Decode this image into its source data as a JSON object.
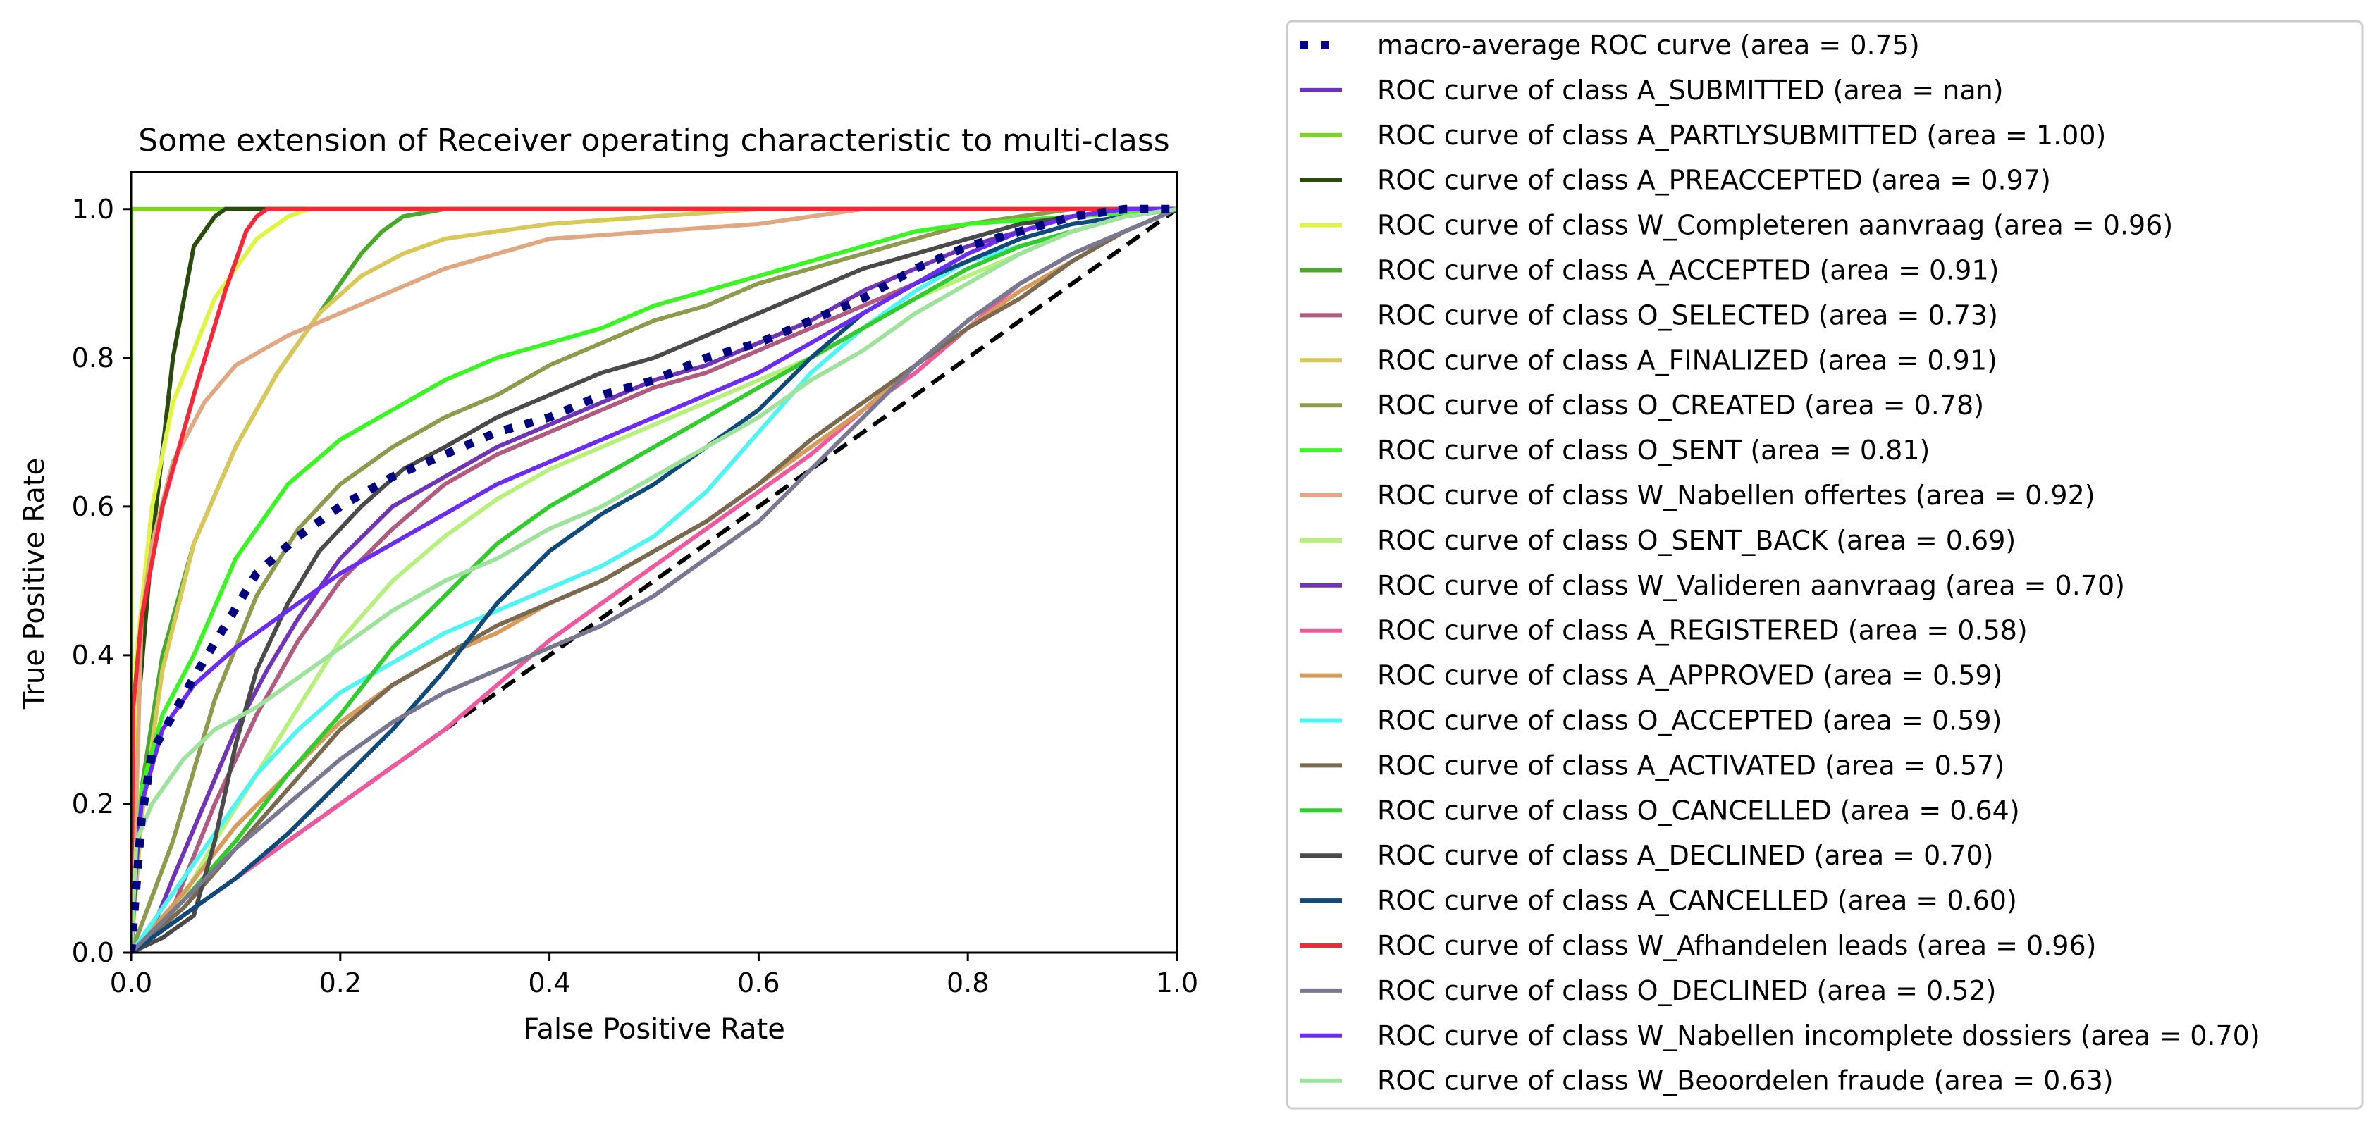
{
  "chart_data": {
    "type": "line",
    "title": "Some extension of Receiver operating characteristic to multi-class",
    "xlabel": "False Positive Rate",
    "ylabel": "True Positive Rate",
    "xlim": [
      0.0,
      1.0
    ],
    "ylim": [
      0.0,
      1.05
    ],
    "xticks": [
      "0.0",
      "0.2",
      "0.4",
      "0.6",
      "0.8",
      "1.0"
    ],
    "yticks": [
      "0.0",
      "0.2",
      "0.4",
      "0.6",
      "0.8",
      "1.0"
    ],
    "grid": false,
    "legend_position": "outside-right",
    "diagonal": {
      "x": [
        0.0,
        1.0
      ],
      "y": [
        0.0,
        1.0
      ],
      "color": "#000000",
      "style": "dashed"
    },
    "series": [
      {
        "name": "macro-average ROC curve (area = 0.75)",
        "color": "#000080",
        "style": "dotted",
        "x": [
          0.0,
          0.01,
          0.02,
          0.04,
          0.06,
          0.09,
          0.12,
          0.16,
          0.2,
          0.25,
          0.3,
          0.35,
          0.4,
          0.45,
          0.5,
          0.55,
          0.6,
          0.65,
          0.7,
          0.75,
          0.8,
          0.85,
          0.9,
          0.95,
          1.0
        ],
        "y": [
          0.0,
          0.18,
          0.27,
          0.32,
          0.37,
          0.44,
          0.51,
          0.56,
          0.6,
          0.64,
          0.67,
          0.7,
          0.72,
          0.75,
          0.77,
          0.8,
          0.82,
          0.85,
          0.88,
          0.92,
          0.95,
          0.97,
          0.99,
          1.0,
          1.0
        ]
      },
      {
        "name": "ROC curve of class A_SUBMITTED (area = nan)",
        "color": "#6a2fc8",
        "style": "solid",
        "x": [],
        "y": []
      },
      {
        "name": "ROC curve of class A_PARTLYSUBMITTED (area = 1.00)",
        "color": "#7fd12c",
        "style": "solid",
        "x": [
          0.0,
          0.0,
          1.0
        ],
        "y": [
          0.0,
          1.0,
          1.0
        ]
      },
      {
        "name": "ROC curve of class A_PREACCEPTED (area = 0.97)",
        "color": "#2b4a0e",
        "style": "solid",
        "x": [
          0.0,
          0.005,
          0.02,
          0.04,
          0.06,
          0.08,
          0.09,
          1.0
        ],
        "y": [
          0.0,
          0.3,
          0.55,
          0.8,
          0.95,
          0.99,
          1.0,
          1.0
        ]
      },
      {
        "name": "ROC curve of class W_Completeren aanvraag (area = 0.96)",
        "color": "#dff542",
        "style": "solid",
        "x": [
          0.0,
          0.005,
          0.02,
          0.04,
          0.08,
          0.12,
          0.15,
          0.17,
          1.0
        ],
        "y": [
          0.0,
          0.4,
          0.6,
          0.74,
          0.88,
          0.96,
          0.99,
          1.0,
          1.0
        ]
      },
      {
        "name": "ROC curve of class A_ACCEPTED (area = 0.91)",
        "color": "#4aa82a",
        "style": "solid",
        "x": [
          0.0,
          0.01,
          0.03,
          0.06,
          0.1,
          0.14,
          0.18,
          0.22,
          0.24,
          0.26,
          0.3,
          0.35,
          1.0
        ],
        "y": [
          0.0,
          0.22,
          0.4,
          0.55,
          0.68,
          0.78,
          0.86,
          0.94,
          0.97,
          0.99,
          1.0,
          1.0,
          1.0
        ]
      },
      {
        "name": "ROC curve of class O_SELECTED (area = 0.73)",
        "color": "#b05b7f",
        "style": "solid",
        "x": [
          0.0,
          0.04,
          0.08,
          0.12,
          0.16,
          0.2,
          0.25,
          0.3,
          0.35,
          0.4,
          0.45,
          0.5,
          0.55,
          0.6,
          0.65,
          0.7,
          0.75,
          0.8,
          0.85,
          0.9,
          0.95,
          1.0
        ],
        "y": [
          0.0,
          0.06,
          0.2,
          0.32,
          0.42,
          0.5,
          0.57,
          0.63,
          0.67,
          0.7,
          0.73,
          0.76,
          0.78,
          0.81,
          0.84,
          0.87,
          0.9,
          0.93,
          0.95,
          0.97,
          0.99,
          1.0
        ]
      },
      {
        "name": "ROC curve of class A_FINALIZED (area = 0.91)",
        "color": "#d8c85a",
        "style": "solid",
        "x": [
          0.0,
          0.01,
          0.03,
          0.06,
          0.1,
          0.14,
          0.18,
          0.22,
          0.26,
          0.3,
          0.35,
          0.4,
          0.5,
          0.6,
          0.7,
          0.8,
          1.0
        ],
        "y": [
          0.0,
          0.18,
          0.38,
          0.55,
          0.68,
          0.78,
          0.86,
          0.91,
          0.94,
          0.96,
          0.97,
          0.98,
          0.99,
          1.0,
          1.0,
          1.0,
          1.0
        ]
      },
      {
        "name": "ROC curve of class O_CREATED (area = 0.78)",
        "color": "#8e9a4e",
        "style": "solid",
        "x": [
          0.0,
          0.04,
          0.08,
          0.12,
          0.16,
          0.2,
          0.25,
          0.3,
          0.35,
          0.4,
          0.45,
          0.5,
          0.55,
          0.6,
          0.65,
          0.7,
          0.75,
          0.8,
          0.85,
          0.9,
          1.0
        ],
        "y": [
          0.0,
          0.15,
          0.34,
          0.48,
          0.57,
          0.63,
          0.68,
          0.72,
          0.75,
          0.79,
          0.82,
          0.85,
          0.87,
          0.9,
          0.92,
          0.94,
          0.96,
          0.98,
          0.99,
          1.0,
          1.0
        ]
      },
      {
        "name": "ROC curve of class O_SENT (area = 0.81)",
        "color": "#3bf524",
        "style": "solid",
        "x": [
          0.0,
          0.01,
          0.03,
          0.06,
          0.1,
          0.15,
          0.2,
          0.25,
          0.3,
          0.35,
          0.4,
          0.45,
          0.5,
          0.55,
          0.6,
          0.65,
          0.7,
          0.75,
          0.8,
          0.9,
          1.0
        ],
        "y": [
          0.0,
          0.22,
          0.32,
          0.4,
          0.53,
          0.63,
          0.69,
          0.73,
          0.77,
          0.8,
          0.82,
          0.84,
          0.87,
          0.89,
          0.91,
          0.93,
          0.95,
          0.97,
          0.98,
          0.99,
          1.0
        ]
      },
      {
        "name": "ROC curve of class W_Nabellen offertes (area = 0.92)",
        "color": "#e0a882",
        "style": "solid",
        "x": [
          0.0,
          0.005,
          0.01,
          0.02,
          0.04,
          0.07,
          0.1,
          0.15,
          0.2,
          0.25,
          0.3,
          0.35,
          0.4,
          0.5,
          0.6,
          0.65,
          0.7,
          0.8,
          1.0
        ],
        "y": [
          0.0,
          0.2,
          0.45,
          0.55,
          0.66,
          0.74,
          0.79,
          0.83,
          0.86,
          0.89,
          0.92,
          0.94,
          0.96,
          0.97,
          0.98,
          0.99,
          1.0,
          1.0,
          1.0
        ]
      },
      {
        "name": "ROC curve of class O_SENT_BACK (area = 0.69)",
        "color": "#b7f07c",
        "style": "solid",
        "x": [
          0.0,
          0.04,
          0.08,
          0.12,
          0.16,
          0.2,
          0.25,
          0.3,
          0.35,
          0.4,
          0.45,
          0.5,
          0.55,
          0.6,
          0.65,
          0.7,
          0.75,
          0.8,
          0.85,
          0.9,
          0.95,
          1.0
        ],
        "y": [
          0.0,
          0.05,
          0.15,
          0.24,
          0.33,
          0.42,
          0.5,
          0.56,
          0.61,
          0.65,
          0.68,
          0.71,
          0.74,
          0.77,
          0.8,
          0.84,
          0.88,
          0.91,
          0.94,
          0.97,
          0.99,
          1.0
        ]
      },
      {
        "name": "ROC curve of class W_Valideren aanvraag (area = 0.70)",
        "color": "#7035b6",
        "style": "solid",
        "x": [
          0.0,
          0.02,
          0.04,
          0.07,
          0.1,
          0.13,
          0.16,
          0.2,
          0.25,
          0.3,
          0.35,
          0.4,
          0.45,
          0.5,
          0.55,
          0.6,
          0.65,
          0.7,
          0.75,
          0.8,
          0.85,
          0.9,
          0.95,
          1.0
        ],
        "y": [
          0.0,
          0.03,
          0.1,
          0.2,
          0.3,
          0.38,
          0.45,
          0.53,
          0.6,
          0.64,
          0.68,
          0.71,
          0.74,
          0.77,
          0.79,
          0.82,
          0.85,
          0.89,
          0.92,
          0.95,
          0.97,
          0.99,
          1.0,
          1.0
        ]
      },
      {
        "name": "ROC curve of class A_REGISTERED (area = 0.58)",
        "color": "#ee5a9e",
        "style": "solid",
        "x": [
          0.0,
          0.05,
          0.1,
          0.15,
          0.2,
          0.25,
          0.3,
          0.35,
          0.4,
          0.45,
          0.5,
          0.55,
          0.6,
          0.65,
          0.7,
          0.75,
          0.8,
          0.85,
          0.9,
          0.95,
          1.0
        ],
        "y": [
          0.0,
          0.05,
          0.1,
          0.15,
          0.2,
          0.25,
          0.3,
          0.36,
          0.42,
          0.47,
          0.52,
          0.57,
          0.62,
          0.67,
          0.73,
          0.78,
          0.84,
          0.9,
          0.94,
          0.97,
          1.0
        ]
      },
      {
        "name": "ROC curve of class A_APPROVED (area = 0.59)",
        "color": "#d89b5e",
        "style": "solid",
        "x": [
          0.0,
          0.05,
          0.1,
          0.15,
          0.2,
          0.25,
          0.3,
          0.35,
          0.4,
          0.45,
          0.5,
          0.55,
          0.6,
          0.65,
          0.7,
          0.75,
          0.8,
          0.85,
          0.9,
          0.95,
          1.0
        ],
        "y": [
          0.0,
          0.08,
          0.17,
          0.24,
          0.31,
          0.36,
          0.4,
          0.43,
          0.47,
          0.5,
          0.54,
          0.58,
          0.63,
          0.68,
          0.73,
          0.79,
          0.84,
          0.89,
          0.93,
          0.97,
          1.0
        ]
      },
      {
        "name": "ROC curve of class O_ACCEPTED (area = 0.59)",
        "color": "#4ff5f0",
        "style": "solid",
        "x": [
          0.0,
          0.04,
          0.08,
          0.12,
          0.16,
          0.2,
          0.25,
          0.3,
          0.35,
          0.4,
          0.45,
          0.5,
          0.55,
          0.6,
          0.65,
          0.7,
          0.75,
          0.8,
          0.85,
          0.9,
          0.95,
          1.0
        ],
        "y": [
          0.0,
          0.08,
          0.16,
          0.24,
          0.3,
          0.35,
          0.39,
          0.43,
          0.46,
          0.49,
          0.52,
          0.56,
          0.62,
          0.7,
          0.78,
          0.84,
          0.89,
          0.93,
          0.95,
          0.97,
          0.99,
          1.0
        ]
      },
      {
        "name": "ROC curve of class A_ACTIVATED (area = 0.57)",
        "color": "#7a6a50",
        "style": "solid",
        "x": [
          0.0,
          0.05,
          0.1,
          0.15,
          0.2,
          0.25,
          0.3,
          0.35,
          0.4,
          0.45,
          0.5,
          0.55,
          0.6,
          0.65,
          0.7,
          0.75,
          0.8,
          0.85,
          0.9,
          0.95,
          1.0
        ],
        "y": [
          0.0,
          0.06,
          0.14,
          0.22,
          0.3,
          0.36,
          0.4,
          0.44,
          0.47,
          0.5,
          0.54,
          0.58,
          0.63,
          0.69,
          0.74,
          0.79,
          0.84,
          0.88,
          0.93,
          0.97,
          1.0
        ]
      },
      {
        "name": "ROC curve of class O_CANCELLED (area = 0.64)",
        "color": "#33cc2e",
        "style": "solid",
        "x": [
          0.0,
          0.05,
          0.1,
          0.15,
          0.2,
          0.25,
          0.3,
          0.35,
          0.4,
          0.45,
          0.5,
          0.55,
          0.6,
          0.65,
          0.7,
          0.75,
          0.8,
          0.85,
          0.9,
          0.95,
          1.0
        ],
        "y": [
          0.0,
          0.07,
          0.15,
          0.24,
          0.32,
          0.41,
          0.48,
          0.55,
          0.6,
          0.64,
          0.68,
          0.72,
          0.76,
          0.8,
          0.84,
          0.88,
          0.92,
          0.95,
          0.97,
          0.99,
          1.0
        ]
      },
      {
        "name": "ROC curve of class A_DECLINED (area = 0.70)",
        "color": "#4a4a4a",
        "style": "solid",
        "x": [
          0.0,
          0.03,
          0.06,
          0.08,
          0.1,
          0.12,
          0.15,
          0.18,
          0.22,
          0.26,
          0.3,
          0.35,
          0.4,
          0.45,
          0.5,
          0.55,
          0.6,
          0.65,
          0.7,
          0.75,
          0.8,
          0.85,
          0.9,
          0.95,
          1.0
        ],
        "y": [
          0.0,
          0.02,
          0.05,
          0.15,
          0.28,
          0.38,
          0.47,
          0.54,
          0.6,
          0.65,
          0.68,
          0.72,
          0.75,
          0.78,
          0.8,
          0.83,
          0.86,
          0.89,
          0.92,
          0.94,
          0.96,
          0.98,
          0.99,
          1.0,
          1.0
        ]
      },
      {
        "name": "ROC curve of class A_CANCELLED (area = 0.60)",
        "color": "#0f4a7a",
        "style": "solid",
        "x": [
          0.0,
          0.05,
          0.1,
          0.15,
          0.2,
          0.25,
          0.3,
          0.35,
          0.4,
          0.45,
          0.5,
          0.55,
          0.6,
          0.65,
          0.7,
          0.75,
          0.8,
          0.85,
          0.9,
          0.95,
          1.0
        ],
        "y": [
          0.0,
          0.05,
          0.1,
          0.16,
          0.23,
          0.3,
          0.38,
          0.47,
          0.54,
          0.59,
          0.63,
          0.68,
          0.73,
          0.8,
          0.86,
          0.9,
          0.93,
          0.96,
          0.98,
          0.99,
          1.0
        ]
      },
      {
        "name": "ROC curve of class W_Afhandelen leads (area = 0.96)",
        "color": "#f5283a",
        "style": "solid",
        "x": [
          0.0,
          0.002,
          0.01,
          0.03,
          0.06,
          0.09,
          0.11,
          0.12,
          0.13,
          1.0
        ],
        "y": [
          0.0,
          0.33,
          0.45,
          0.6,
          0.75,
          0.89,
          0.97,
          0.99,
          1.0,
          1.0
        ]
      },
      {
        "name": "ROC curve of class O_DECLINED (area = 0.52)",
        "color": "#7a7890",
        "style": "solid",
        "x": [
          0.0,
          0.05,
          0.1,
          0.15,
          0.2,
          0.25,
          0.3,
          0.35,
          0.4,
          0.45,
          0.5,
          0.55,
          0.6,
          0.65,
          0.7,
          0.75,
          0.8,
          0.85,
          0.9,
          0.95,
          1.0
        ],
        "y": [
          0.0,
          0.07,
          0.14,
          0.2,
          0.26,
          0.31,
          0.35,
          0.38,
          0.41,
          0.44,
          0.48,
          0.53,
          0.58,
          0.65,
          0.72,
          0.79,
          0.85,
          0.9,
          0.94,
          0.97,
          1.0
        ]
      },
      {
        "name": "ROC curve of class W_Nabellen incomplete dossiers (area = 0.70)",
        "color": "#6b2cf5",
        "style": "solid",
        "x": [
          0.0,
          0.005,
          0.01,
          0.03,
          0.06,
          0.1,
          0.15,
          0.2,
          0.25,
          0.3,
          0.35,
          0.4,
          0.45,
          0.5,
          0.55,
          0.6,
          0.65,
          0.7,
          0.75,
          0.8,
          0.85,
          0.9,
          0.95,
          1.0
        ],
        "y": [
          0.0,
          0.12,
          0.2,
          0.3,
          0.36,
          0.41,
          0.46,
          0.51,
          0.55,
          0.59,
          0.63,
          0.66,
          0.69,
          0.72,
          0.75,
          0.78,
          0.82,
          0.86,
          0.9,
          0.94,
          0.97,
          0.99,
          1.0,
          1.0
        ]
      },
      {
        "name": "ROC curve of class W_Beoordelen fraude (area = 0.63)",
        "color": "#9fe29b",
        "style": "solid",
        "x": [
          0.0,
          0.005,
          0.02,
          0.05,
          0.08,
          0.12,
          0.16,
          0.2,
          0.25,
          0.3,
          0.35,
          0.4,
          0.45,
          0.5,
          0.55,
          0.6,
          0.65,
          0.7,
          0.75,
          0.8,
          0.85,
          0.9,
          0.95,
          1.0
        ],
        "y": [
          0.0,
          0.15,
          0.2,
          0.26,
          0.3,
          0.33,
          0.37,
          0.41,
          0.46,
          0.5,
          0.53,
          0.57,
          0.6,
          0.64,
          0.68,
          0.72,
          0.77,
          0.81,
          0.86,
          0.9,
          0.94,
          0.97,
          0.99,
          1.0
        ]
      }
    ]
  }
}
